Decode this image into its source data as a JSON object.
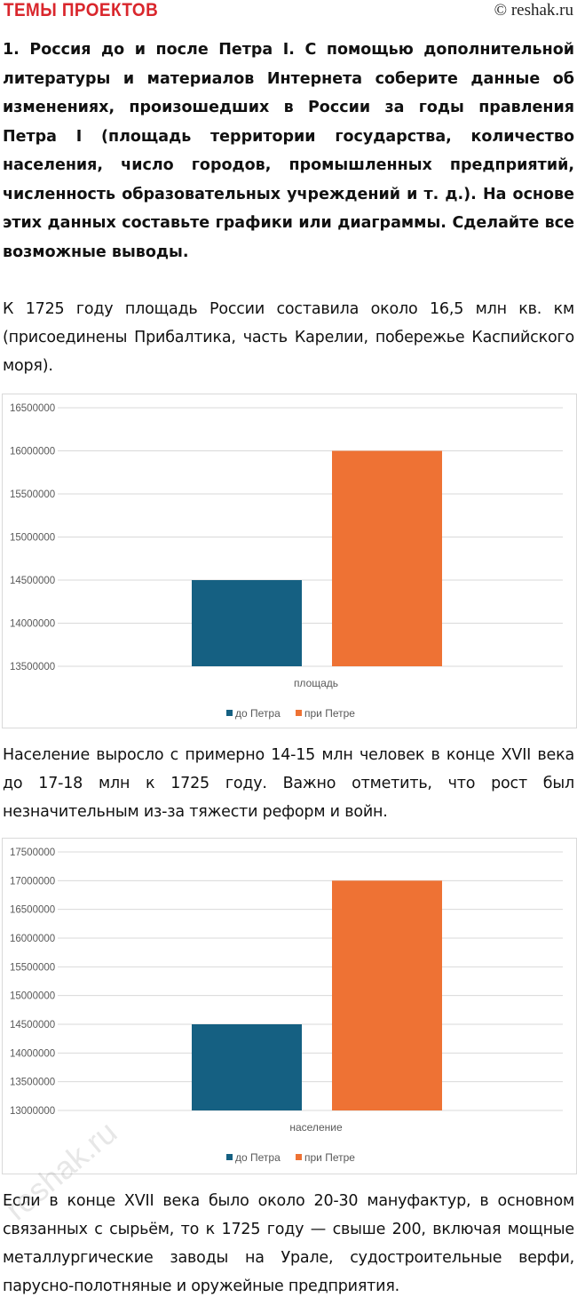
{
  "header": {
    "brand": "ТЕМЫ ПРОЕКТОВ",
    "copyright": "© reshak.ru"
  },
  "task": "1. Россия до и после Петра I. С помощью дополнительной литературы и материалов Интернета соберите данные об изменениях, произошедших в России за годы правления Петра I (площадь территории государства, количество населения, число городов, промышленных предприятий, численность образовательных учреждений и т. д.). На основе этих данных составьте графики или диаграммы. Сделайте все возможные выводы.",
  "paragraphs": [
    "К 1725 году площадь России составила около 16,5 млн кв. км (присоединены Прибалтика, часть Карелии, побережье Каспийского моря).",
    "Население выросло с примерно 14-15 млн человек в конце XVII века до 17-18 млн к 1725 году. Важно отметить, что рост был незначительным из-за тяжести реформ и войн.",
    "Если в конце XVII века было около 20-30 мануфактур, в основном связанных с сырьём, то к 1725 году — свыше 200, включая мощные металлургические заводы на Урале, судостроительные верфи, парусно-полотняные и оружейные предприятия."
  ],
  "watermark": "reshak.ru",
  "chart_data": [
    {
      "type": "bar",
      "categories": [
        "площадь"
      ],
      "series": [
        {
          "name": "до Петра",
          "values": [
            14500000
          ],
          "color": "#156082"
        },
        {
          "name": "при Петре",
          "values": [
            16000000
          ],
          "color": "#ee7234"
        }
      ],
      "ylim": [
        13500000,
        16500000
      ],
      "yticks": [
        "13500000",
        "14000000",
        "14500000",
        "15000000",
        "15500000",
        "16000000",
        "16500000"
      ],
      "grid": true,
      "legend": "bottom"
    },
    {
      "type": "bar",
      "categories": [
        "население"
      ],
      "series": [
        {
          "name": "до Петра",
          "values": [
            14500000
          ],
          "color": "#156082"
        },
        {
          "name": "при Петре",
          "values": [
            17000000
          ],
          "color": "#ee7234"
        }
      ],
      "ylim": [
        13000000,
        17500000
      ],
      "yticks": [
        "13000000",
        "13500000",
        "14000000",
        "14500000",
        "15000000",
        "15500000",
        "16000000",
        "16500000",
        "17000000",
        "17500000"
      ],
      "grid": true,
      "legend": "bottom"
    }
  ]
}
